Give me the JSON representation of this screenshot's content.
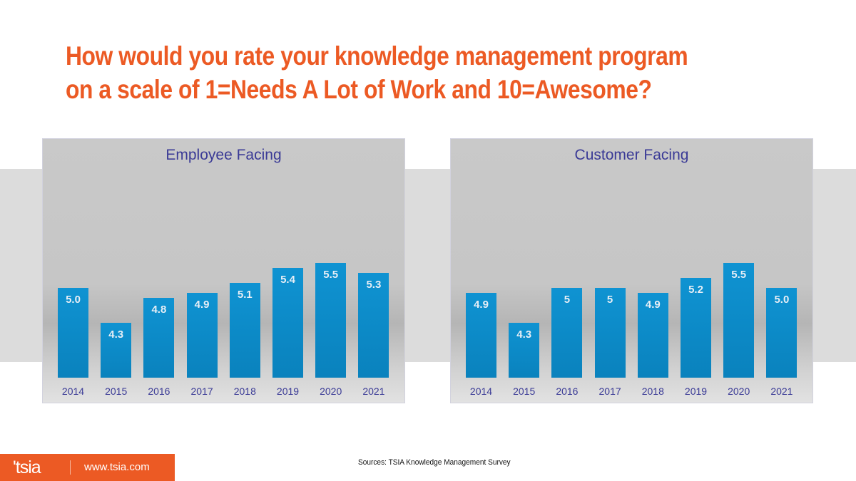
{
  "title": {
    "line1": "How would you rate your knowledge management program",
    "line2": "on a scale of 1=Needs A Lot of Work and 10=Awesome?"
  },
  "colors": {
    "accent": "#ec5a24",
    "bar": "#0f93d2",
    "panel_title": "#3a3a96"
  },
  "chart_data": [
    {
      "type": "bar",
      "title": "Employee Facing",
      "categories": [
        "2014",
        "2015",
        "2016",
        "2017",
        "2018",
        "2019",
        "2020",
        "2021"
      ],
      "values": [
        5.0,
        4.3,
        4.8,
        4.9,
        5.1,
        5.4,
        5.5,
        5.3
      ],
      "labels": [
        "5.0",
        "4.3",
        "4.8",
        "4.9",
        "5.1",
        "5.4",
        "5.5",
        "5.3"
      ],
      "xlabel": "",
      "ylabel": "",
      "grid": false,
      "legend": "none"
    },
    {
      "type": "bar",
      "title": "Customer Facing",
      "categories": [
        "2014",
        "2015",
        "2016",
        "2017",
        "2018",
        "2019",
        "2020",
        "2021"
      ],
      "values": [
        4.9,
        4.3,
        5.0,
        5.0,
        4.9,
        5.2,
        5.5,
        5.0
      ],
      "labels": [
        "4.9",
        "4.3",
        "5",
        "5",
        "4.9",
        "5.2",
        "5.5",
        "5.0"
      ],
      "xlabel": "",
      "ylabel": "",
      "grid": false,
      "legend": "none"
    }
  ],
  "footer": {
    "logo": "'tsia",
    "url": "www.tsia.com",
    "source": "Sources: TSIA Knowledge Management Survey"
  }
}
